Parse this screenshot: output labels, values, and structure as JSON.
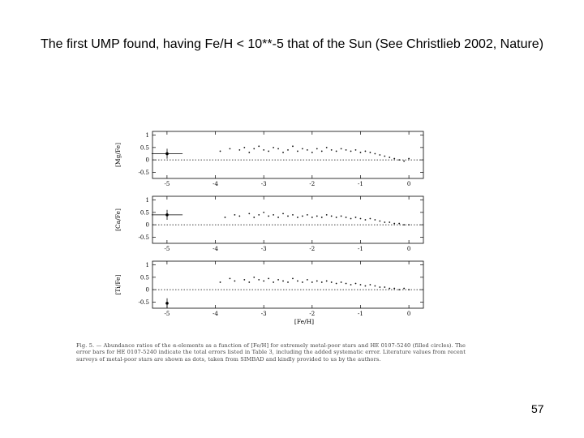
{
  "slide": {
    "title": "The first UMP found, having Fe/H < 10**-5 that of the Sun (See Christlieb 2002, Nature)",
    "page_number": "57"
  },
  "figure": {
    "caption": "Fig. 5. — Abundance ratios of the α-elements as a function of [Fe/H] for extremely metal-poor stars and HE 0107-5240 (filled circles). The error bars for HE 0107-5240 indicate the total errors listed in Table 3, including the added systematic error. Literature values from recent surveys of metal-poor stars are shown as dots, taken from SIMBAD and kindly provided to us by the authors."
  },
  "chart_data": [
    {
      "type": "scatter",
      "ylabel": "[Mg/Fe]",
      "xlim": [
        -5.3,
        0.3
      ],
      "ylim": [
        -0.75,
        1.15
      ],
      "x_ticks": [
        "-5",
        "-4",
        "-3",
        "-2",
        "-1",
        "0"
      ],
      "y_ticks": [
        "1",
        "0.5",
        "0",
        "-0.5"
      ],
      "reference_line": 0,
      "highlight_point": {
        "x": -5.3,
        "y": 0.25,
        "xerr": 0.2,
        "yerr": 0.2
      },
      "series": [
        {
          "values": [
            [
              -3.9,
              0.35
            ],
            [
              -3.7,
              0.45
            ],
            [
              -3.5,
              0.4
            ],
            [
              -3.4,
              0.5
            ],
            [
              -3.3,
              0.3
            ],
            [
              -3.2,
              0.45
            ],
            [
              -3.1,
              0.55
            ],
            [
              -3.0,
              0.4
            ],
            [
              -2.9,
              0.35
            ],
            [
              -2.8,
              0.5
            ],
            [
              -2.7,
              0.45
            ],
            [
              -2.6,
              0.3
            ],
            [
              -2.5,
              0.4
            ],
            [
              -2.4,
              0.55
            ],
            [
              -2.3,
              0.35
            ],
            [
              -2.2,
              0.45
            ],
            [
              -2.1,
              0.4
            ],
            [
              -2.0,
              0.3
            ],
            [
              -1.9,
              0.45
            ],
            [
              -1.8,
              0.35
            ],
            [
              -1.7,
              0.5
            ],
            [
              -1.6,
              0.4
            ],
            [
              -1.5,
              0.35
            ],
            [
              -1.4,
              0.45
            ],
            [
              -1.3,
              0.4
            ],
            [
              -1.2,
              0.35
            ],
            [
              -1.1,
              0.4
            ],
            [
              -1.0,
              0.3
            ],
            [
              -0.9,
              0.35
            ],
            [
              -0.8,
              0.3
            ],
            [
              -0.7,
              0.25
            ],
            [
              -0.6,
              0.2
            ],
            [
              -0.5,
              0.15
            ],
            [
              -0.4,
              0.1
            ],
            [
              -0.3,
              0.05
            ],
            [
              -0.2,
              0.0
            ],
            [
              -0.1,
              -0.05
            ],
            [
              0.0,
              0.05
            ]
          ]
        }
      ]
    },
    {
      "type": "scatter",
      "ylabel": "[Ca/Fe]",
      "xlim": [
        -5.3,
        0.3
      ],
      "ylim": [
        -0.75,
        1.15
      ],
      "x_ticks": [
        "-5",
        "-4",
        "-3",
        "-2",
        "-1",
        "0"
      ],
      "y_ticks": [
        "1",
        "0.5",
        "0",
        "-0.5"
      ],
      "reference_line": 0,
      "highlight_point": {
        "x": -5.3,
        "y": 0.4,
        "xerr": 0.2,
        "yerr": 0.2
      },
      "series": [
        {
          "values": [
            [
              -3.8,
              0.3
            ],
            [
              -3.6,
              0.4
            ],
            [
              -3.5,
              0.35
            ],
            [
              -3.3,
              0.45
            ],
            [
              -3.2,
              0.3
            ],
            [
              -3.1,
              0.4
            ],
            [
              -3.0,
              0.5
            ],
            [
              -2.9,
              0.35
            ],
            [
              -2.8,
              0.4
            ],
            [
              -2.7,
              0.3
            ],
            [
              -2.6,
              0.45
            ],
            [
              -2.5,
              0.35
            ],
            [
              -2.4,
              0.4
            ],
            [
              -2.3,
              0.3
            ],
            [
              -2.2,
              0.35
            ],
            [
              -2.1,
              0.4
            ],
            [
              -2.0,
              0.3
            ],
            [
              -1.9,
              0.35
            ],
            [
              -1.8,
              0.3
            ],
            [
              -1.7,
              0.4
            ],
            [
              -1.6,
              0.35
            ],
            [
              -1.5,
              0.3
            ],
            [
              -1.4,
              0.35
            ],
            [
              -1.3,
              0.3
            ],
            [
              -1.2,
              0.25
            ],
            [
              -1.1,
              0.3
            ],
            [
              -1.0,
              0.25
            ],
            [
              -0.9,
              0.2
            ],
            [
              -0.8,
              0.25
            ],
            [
              -0.7,
              0.2
            ],
            [
              -0.6,
              0.15
            ],
            [
              -0.5,
              0.1
            ],
            [
              -0.4,
              0.1
            ],
            [
              -0.3,
              0.05
            ],
            [
              -0.2,
              0.05
            ],
            [
              -0.1,
              0.0
            ],
            [
              0.0,
              0.0
            ]
          ]
        }
      ]
    },
    {
      "type": "scatter",
      "ylabel": "[Ti/Fe]",
      "xlim": [
        -5.3,
        0.3
      ],
      "ylim": [
        -0.75,
        1.15
      ],
      "x_ticks": [
        "-5",
        "-4",
        "-3",
        "-2",
        "-1",
        "0"
      ],
      "y_ticks": [
        "1",
        "0.5",
        "0",
        "-0.5"
      ],
      "reference_line": 0,
      "highlight_point": {
        "x": -5.3,
        "y": -0.55,
        "xerr": 0.0,
        "yerr": 0.2
      },
      "series": [
        {
          "values": [
            [
              -3.9,
              0.3
            ],
            [
              -3.7,
              0.45
            ],
            [
              -3.6,
              0.35
            ],
            [
              -3.4,
              0.4
            ],
            [
              -3.3,
              0.3
            ],
            [
              -3.2,
              0.5
            ],
            [
              -3.1,
              0.4
            ],
            [
              -3.0,
              0.35
            ],
            [
              -2.9,
              0.45
            ],
            [
              -2.8,
              0.3
            ],
            [
              -2.7,
              0.4
            ],
            [
              -2.6,
              0.35
            ],
            [
              -2.5,
              0.3
            ],
            [
              -2.4,
              0.45
            ],
            [
              -2.3,
              0.35
            ],
            [
              -2.2,
              0.3
            ],
            [
              -2.1,
              0.4
            ],
            [
              -2.0,
              0.3
            ],
            [
              -1.9,
              0.35
            ],
            [
              -1.8,
              0.3
            ],
            [
              -1.7,
              0.35
            ],
            [
              -1.6,
              0.3
            ],
            [
              -1.5,
              0.25
            ],
            [
              -1.4,
              0.3
            ],
            [
              -1.3,
              0.25
            ],
            [
              -1.2,
              0.2
            ],
            [
              -1.1,
              0.25
            ],
            [
              -1.0,
              0.2
            ],
            [
              -0.9,
              0.15
            ],
            [
              -0.8,
              0.2
            ],
            [
              -0.7,
              0.15
            ],
            [
              -0.6,
              0.1
            ],
            [
              -0.5,
              0.1
            ],
            [
              -0.4,
              0.05
            ],
            [
              -0.3,
              0.05
            ],
            [
              -0.2,
              0.0
            ],
            [
              -0.1,
              0.05
            ],
            [
              0.0,
              0.0
            ]
          ]
        }
      ]
    }
  ]
}
